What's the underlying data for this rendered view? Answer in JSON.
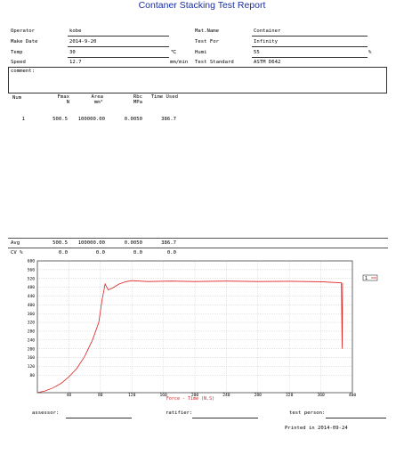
{
  "report": {
    "title": "Contaner Stacking Test Report"
  },
  "info_left": [
    {
      "label": "Operator",
      "value": "kobe",
      "unit": ""
    },
    {
      "label": "Make Date",
      "value": "2014-9-20",
      "unit": ""
    },
    {
      "label": "Temp",
      "value": "30",
      "unit": "℃"
    },
    {
      "label": "Speed",
      "value": "12.7",
      "unit": "mm/min"
    }
  ],
  "info_right": [
    {
      "label": "Mat.Name",
      "value": "Container",
      "unit": ""
    },
    {
      "label": "Test For",
      "value": "Infinity",
      "unit": ""
    },
    {
      "label": "Humi",
      "value": "55",
      "unit": "%"
    },
    {
      "label": "Test Standard",
      "value": "ASTM D642",
      "unit": ""
    }
  ],
  "comment": {
    "label": "comment:"
  },
  "results_table": {
    "headers": [
      {
        "name": "Num",
        "unit": ""
      },
      {
        "name": "Fmax",
        "unit": "N"
      },
      {
        "name": "Area",
        "unit": "mm²"
      },
      {
        "name": "Rbc",
        "unit": "MPa"
      },
      {
        "name": "Time Used",
        "unit": ""
      }
    ],
    "rows": [
      [
        "1",
        "500.5",
        "100000.00",
        "0.0050",
        "386.7"
      ]
    ]
  },
  "stats": [
    {
      "label": "Avg",
      "values": [
        "500.5",
        "100000.00",
        "0.0050",
        "386.7"
      ]
    },
    {
      "label": "CV %",
      "values": [
        "0.0",
        "0.0",
        "0.0",
        "0.0"
      ]
    }
  ],
  "chart_data": {
    "type": "line",
    "xlabel": "Force - Time  (N.S)",
    "xlim": [
      0,
      400
    ],
    "ylim": [
      0,
      600
    ],
    "x_ticks": [
      "40",
      "80",
      "120",
      "160",
      "200",
      "240",
      "280",
      "320",
      "360",
      "400"
    ],
    "y_ticks": [
      "80",
      "120",
      "160",
      "200",
      "240",
      "280",
      "320",
      "360",
      "400",
      "440",
      "480",
      "520",
      "560",
      "600"
    ],
    "grid": true,
    "legend": "1",
    "line_color": "#e02020",
    "series": [
      {
        "x": [
          0,
          10,
          20,
          30,
          40,
          50,
          60,
          70,
          78,
          82,
          86,
          90,
          96,
          104,
          112,
          120,
          140,
          170,
          200,
          240,
          280,
          320,
          360,
          386,
          387,
          387.5
        ],
        "y": [
          0,
          8,
          22,
          42,
          72,
          110,
          165,
          240,
          320,
          420,
          495,
          468,
          478,
          495,
          505,
          510,
          506,
          508,
          506,
          508,
          506,
          507,
          505,
          500,
          200,
          500
        ]
      }
    ]
  },
  "signatures": [
    {
      "label": "assessor:"
    },
    {
      "label": "ratifier:"
    },
    {
      "label": "test person:"
    }
  ],
  "footer": {
    "printed": "Printed in 2014-09-24"
  }
}
